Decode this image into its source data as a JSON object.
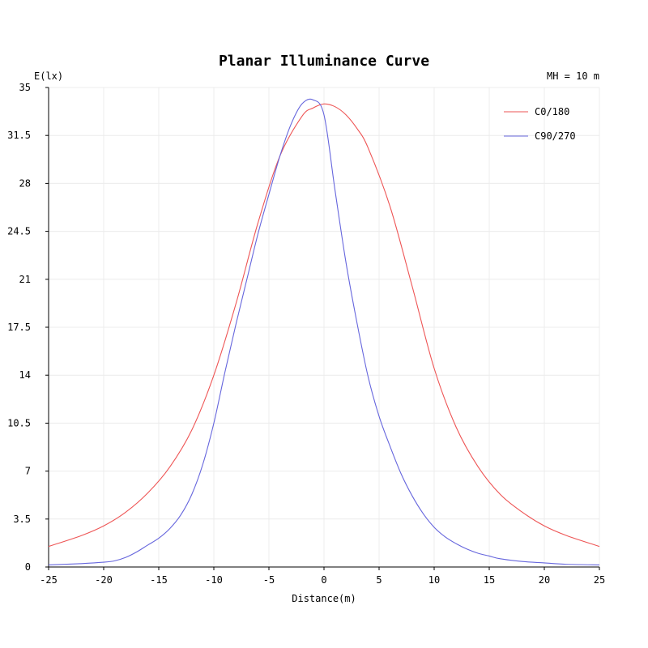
{
  "chart_data": {
    "type": "line",
    "title": "Planar Illuminance Curve",
    "ylabel": "E(lx)",
    "xlabel": "Distance(m)",
    "annotation": "MH = 10 m",
    "xlim": [
      -25,
      25
    ],
    "ylim": [
      0,
      35
    ],
    "xticks": [
      -25,
      -20,
      -15,
      -10,
      -5,
      0,
      5,
      10,
      15,
      20,
      25
    ],
    "yticks": [
      0,
      3.5,
      7,
      10.5,
      14,
      17.5,
      21,
      24.5,
      28,
      31.5,
      35
    ],
    "grid": true,
    "legend_position": "top-right",
    "series": [
      {
        "name": "C0/180",
        "color": "#ee5555",
        "x": [
          -25,
          -22,
          -20,
          -18,
          -16,
          -14,
          -12,
          -10,
          -8,
          -6,
          -4,
          -2,
          -1,
          0,
          1,
          2,
          3,
          4,
          6,
          8,
          10,
          12,
          14,
          16,
          18,
          20,
          22,
          25
        ],
        "y": [
          1.5,
          2.3,
          3.0,
          4.0,
          5.4,
          7.3,
          10.0,
          14.0,
          19.2,
          25.1,
          30.0,
          32.9,
          33.5,
          33.8,
          33.6,
          33.0,
          32.0,
          30.6,
          26.3,
          20.5,
          14.5,
          10.2,
          7.3,
          5.3,
          4.0,
          3.0,
          2.3,
          1.5
        ]
      },
      {
        "name": "C90/270",
        "color": "#6666dd",
        "x": [
          -25,
          -22,
          -20,
          -19,
          -18,
          -17,
          -16,
          -15,
          -14,
          -13,
          -12,
          -11,
          -10,
          -9,
          -8,
          -7,
          -6,
          -5,
          -4,
          -3,
          -2,
          -1,
          0,
          1,
          2,
          3,
          4,
          5,
          6,
          7,
          8,
          9,
          10,
          11,
          12,
          13,
          14,
          15,
          16,
          18,
          20,
          22,
          25
        ],
        "y": [
          0.15,
          0.25,
          0.35,
          0.45,
          0.7,
          1.1,
          1.6,
          2.1,
          2.8,
          3.8,
          5.3,
          7.5,
          10.5,
          14.2,
          17.7,
          21.0,
          24.3,
          27.2,
          30.0,
          32.3,
          33.8,
          34.1,
          33.0,
          27.5,
          22.2,
          17.8,
          13.9,
          11.0,
          8.8,
          6.8,
          5.2,
          3.9,
          2.9,
          2.2,
          1.7,
          1.3,
          1.0,
          0.8,
          0.6,
          0.4,
          0.3,
          0.2,
          0.15
        ]
      }
    ]
  }
}
